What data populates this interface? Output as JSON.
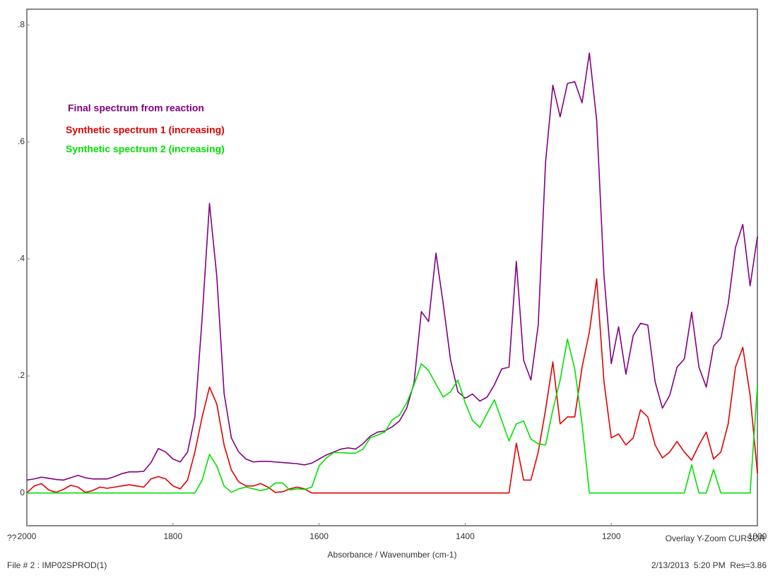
{
  "chart_data": {
    "type": "line",
    "x_label": "Absorbance / Wavenumber (cm-1)",
    "annotations": [
      "??",
      "File # 2 : IMP02SPROD(1)",
      "Overlay Y-Zoom CURSOR",
      "2/13/2013  5:20 PM  Res=3.86"
    ],
    "legend": "upper left",
    "xlim": [
      2000,
      1000
    ],
    "xticks": [
      2000,
      1800,
      1600,
      1400,
      1200,
      1000
    ],
    "ylim": [
      -0.056,
      0.827
    ],
    "yticks": [
      0,
      {
        "value": 0.2,
        "label": ".2"
      },
      {
        "value": 0.4,
        "label": ".4"
      },
      {
        "value": 0.6,
        "label": ".6"
      },
      {
        "value": 0.8,
        "label": ".8"
      }
    ],
    "x": [
      2000,
      1990,
      1980,
      1970,
      1960,
      1950,
      1940,
      1930,
      1920,
      1910,
      1900,
      1890,
      1880,
      1870,
      1860,
      1850,
      1840,
      1830,
      1820,
      1810,
      1800,
      1790,
      1780,
      1770,
      1760,
      1750,
      1740,
      1730,
      1720,
      1710,
      1700,
      1690,
      1680,
      1670,
      1660,
      1650,
      1640,
      1630,
      1620,
      1610,
      1600,
      1590,
      1580,
      1570,
      1560,
      1550,
      1540,
      1530,
      1520,
      1510,
      1500,
      1490,
      1480,
      1470,
      1460,
      1450,
      1440,
      1430,
      1420,
      1410,
      1400,
      1390,
      1380,
      1370,
      1360,
      1350,
      1340,
      1330,
      1320,
      1310,
      1300,
      1290,
      1280,
      1270,
      1260,
      1250,
      1240,
      1230,
      1220,
      1210,
      1200,
      1190,
      1180,
      1170,
      1160,
      1150,
      1140,
      1130,
      1120,
      1110,
      1100,
      1090,
      1080,
      1070,
      1060,
      1050,
      1040,
      1030,
      1020,
      1010,
      1000
    ],
    "series": [
      {
        "name": "Final spectrum from reaction",
        "color": "#800080",
        "values": [
          0.022,
          0.024,
          0.027,
          0.025,
          0.023,
          0.022,
          0.026,
          0.03,
          0.026,
          0.024,
          0.024,
          0.024,
          0.028,
          0.033,
          0.036,
          0.036,
          0.037,
          0.052,
          0.076,
          0.07,
          0.058,
          0.053,
          0.07,
          0.13,
          0.3,
          0.495,
          0.37,
          0.17,
          0.094,
          0.07,
          0.058,
          0.053,
          0.054,
          0.054,
          0.053,
          0.052,
          0.051,
          0.05,
          0.048,
          0.051,
          0.058,
          0.065,
          0.07,
          0.075,
          0.077,
          0.075,
          0.084,
          0.097,
          0.104,
          0.106,
          0.113,
          0.123,
          0.145,
          0.188,
          0.31,
          0.293,
          0.41,
          0.323,
          0.227,
          0.173,
          0.162,
          0.169,
          0.157,
          0.164,
          0.185,
          0.212,
          0.215,
          0.396,
          0.227,
          0.193,
          0.287,
          0.565,
          0.697,
          0.643,
          0.7,
          0.703,
          0.667,
          0.752,
          0.637,
          0.372,
          0.221,
          0.284,
          0.203,
          0.269,
          0.29,
          0.287,
          0.19,
          0.145,
          0.167,
          0.215,
          0.229,
          0.309,
          0.215,
          0.181,
          0.251,
          0.265,
          0.323,
          0.42,
          0.459,
          0.354,
          0.438
        ]
      },
      {
        "name": "Synthetic spectrum 1 (increasing)",
        "color": "#e00000",
        "values": [
          0,
          0.012,
          0.016,
          0.005,
          0.001,
          0.006,
          0.013,
          0.01,
          0.001,
          0.004,
          0.01,
          0.008,
          0.01,
          0.012,
          0.014,
          0.012,
          0.01,
          0.024,
          0.028,
          0.024,
          0.012,
          0.007,
          0.022,
          0.07,
          0.13,
          0.181,
          0.152,
          0.082,
          0.039,
          0.019,
          0.012,
          0.012,
          0.016,
          0.01,
          0.001,
          0.002,
          0.007,
          0.01,
          0.007,
          0,
          0,
          0,
          0,
          0,
          0,
          0,
          0,
          0,
          0,
          0,
          0,
          0,
          0,
          0,
          0,
          0,
          0,
          0,
          0,
          0,
          0,
          0,
          0,
          0,
          0,
          0,
          0,
          0.085,
          0.022,
          0.022,
          0.07,
          0.142,
          0.224,
          0.118,
          0.13,
          0.13,
          0.215,
          0.275,
          0.366,
          0.19,
          0.094,
          0.101,
          0.082,
          0.094,
          0.142,
          0.13,
          0.082,
          0.06,
          0.07,
          0.088,
          0.07,
          0.056,
          0.082,
          0.104,
          0.058,
          0.07,
          0.118,
          0.215,
          0.249,
          0.167,
          0.034
        ]
      },
      {
        "name": "Synthetic spectrum 2 (increasing)",
        "color": "#00e000",
        "values": [
          0,
          0,
          0,
          0,
          0,
          0,
          0,
          0,
          0,
          0,
          0,
          0,
          0,
          0,
          0,
          0,
          0,
          0,
          0,
          0,
          0,
          0,
          0,
          0,
          0.022,
          0.066,
          0.046,
          0.012,
          0.001,
          0.007,
          0.01,
          0.007,
          0.004,
          0.007,
          0.017,
          0.017,
          0.005,
          0.007,
          0.006,
          0.01,
          0.046,
          0.06,
          0.069,
          0.069,
          0.068,
          0.068,
          0.075,
          0.094,
          0.099,
          0.104,
          0.125,
          0.133,
          0.154,
          0.185,
          0.221,
          0.209,
          0.186,
          0.164,
          0.173,
          0.193,
          0.154,
          0.124,
          0.112,
          0.136,
          0.159,
          0.124,
          0.089,
          0.118,
          0.123,
          0.092,
          0.084,
          0.082,
          0.142,
          0.193,
          0.263,
          0.212,
          0.118,
          0,
          0,
          0,
          0,
          0,
          0,
          0,
          0,
          0,
          0,
          0,
          0,
          0,
          0,
          0.048,
          0,
          0,
          0.04,
          0,
          0,
          0,
          0,
          0,
          0.182
        ]
      }
    ]
  }
}
